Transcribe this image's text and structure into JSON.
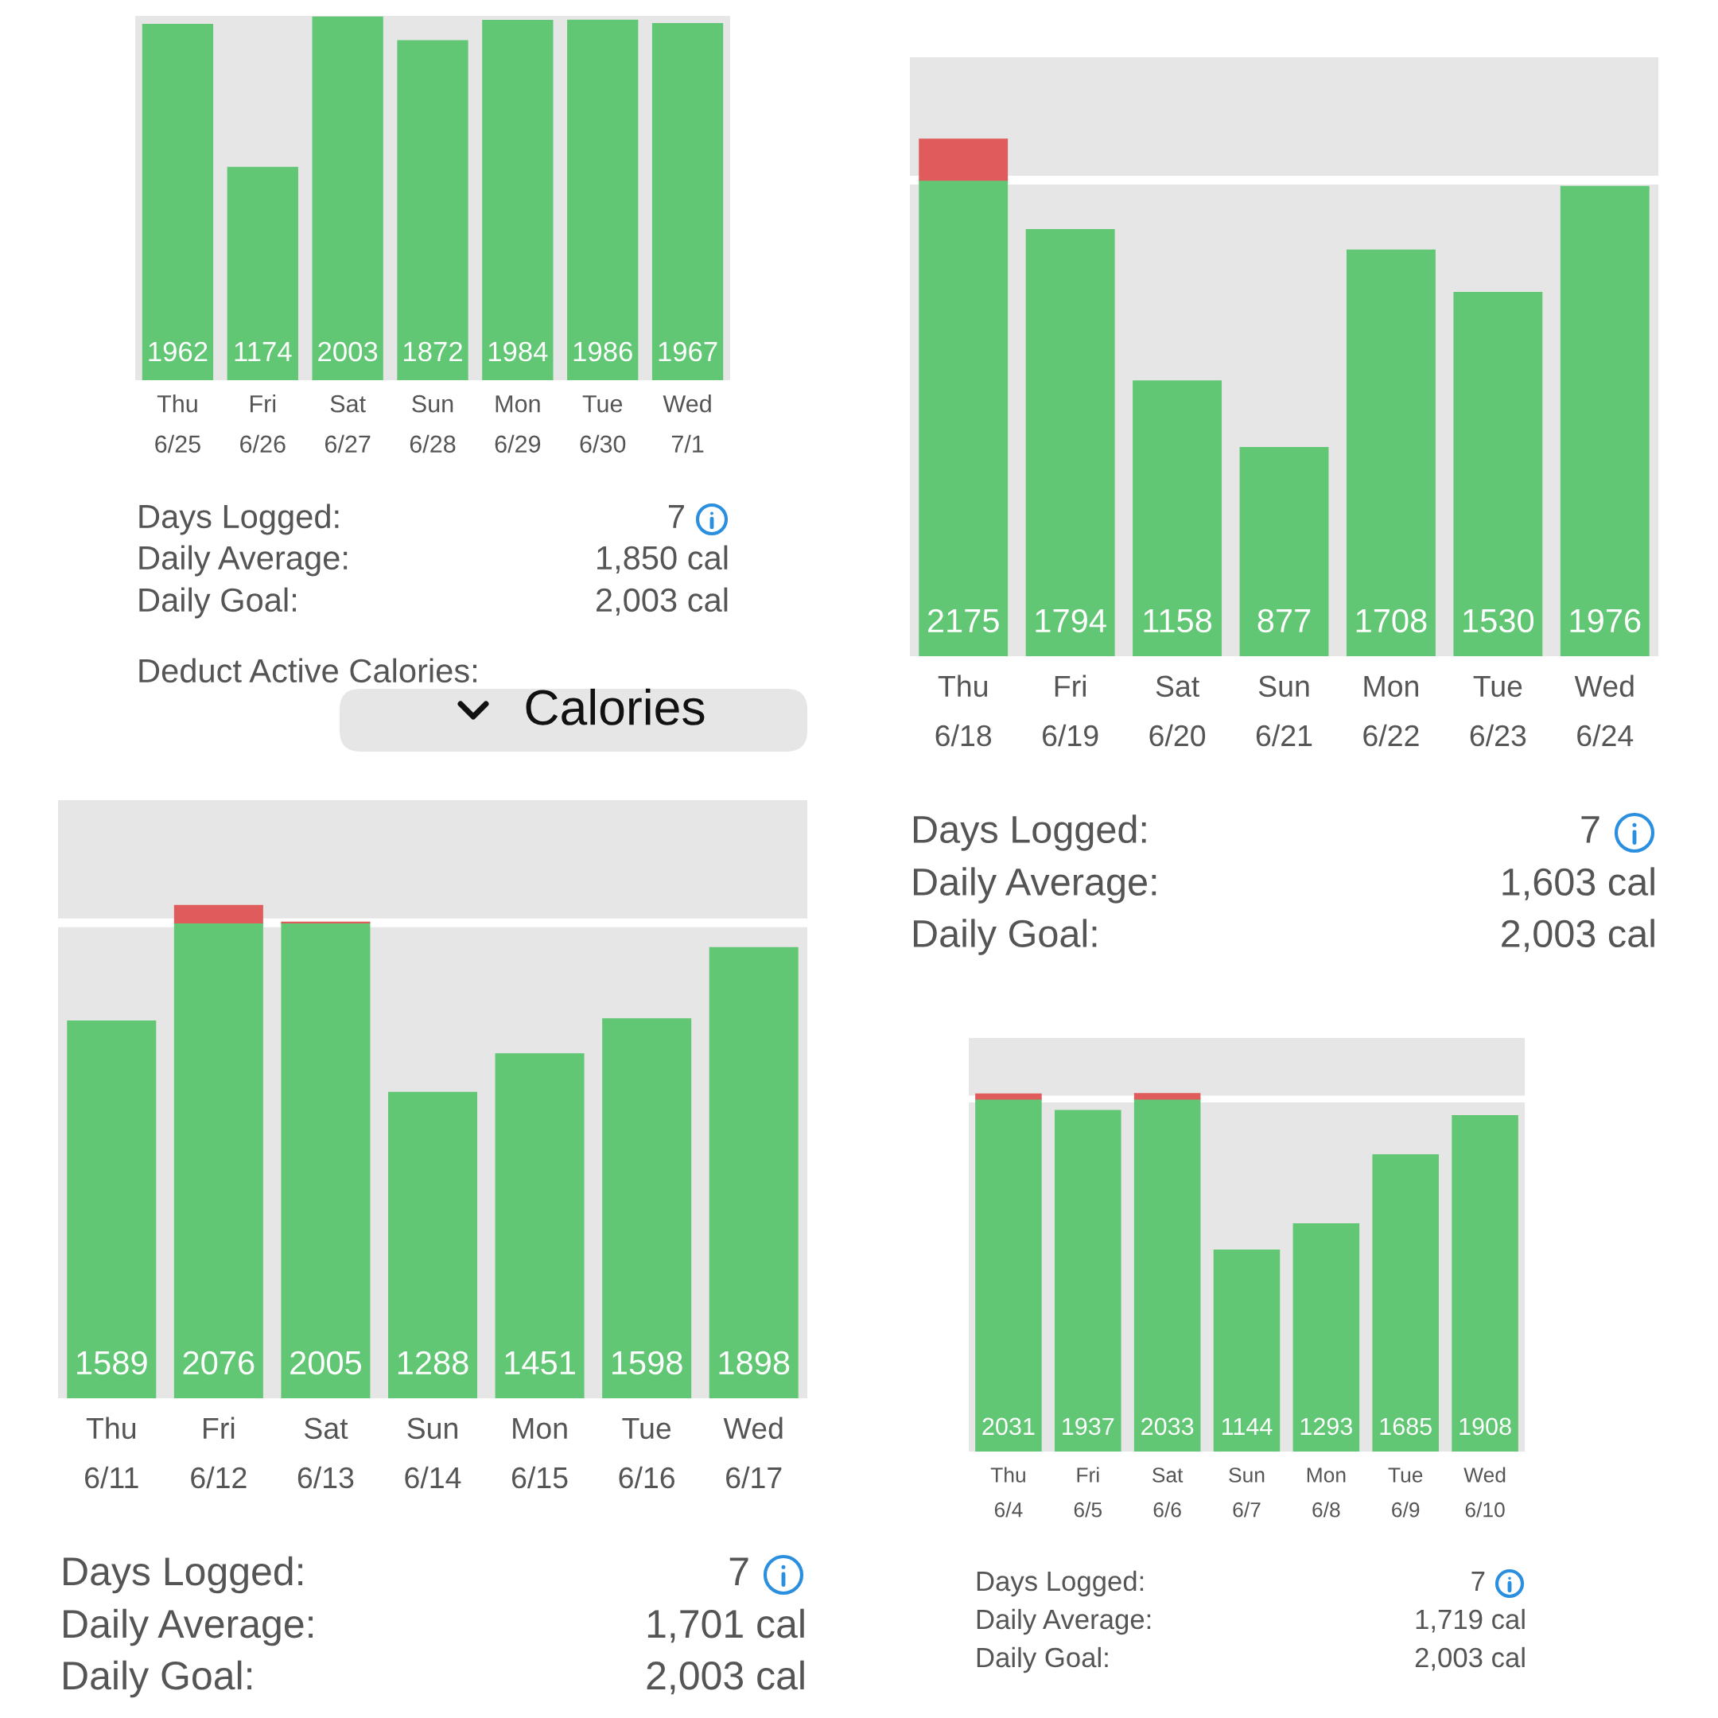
{
  "chart_data": [
    {
      "type": "bar",
      "categories": [
        "Thu\n6/25",
        "Fri\n6/26",
        "Sat\n6/27",
        "Sun\n6/28",
        "Mon\n6/29",
        "Tue\n6/30",
        "Wed\n7/1"
      ],
      "series": [
        {
          "color": "#62c774",
          "values": [
            1962,
            1174,
            2003,
            1872,
            1984,
            1986,
            1967
          ]
        }
      ],
      "data_labels": true,
      "ylim": [
        0,
        2010
      ],
      "tick_labels": "x",
      "bands": [
        {
          "axis": "y",
          "from": 0,
          "to": 2010,
          "color": "#e6e6e6"
        }
      ],
      "annotations": [
        "Days Logged:",
        "7",
        "Daily Average:",
        "1,850 cal",
        "Daily Goal:",
        "2,003 cal",
        "Deduct Active Calories:"
      ]
    },
    {
      "type": "bar",
      "categories": [
        "Thu\n6/18",
        "Fri\n6/19",
        "Sat\n6/20",
        "Sun\n6/21",
        "Mon\n6/22",
        "Tue\n6/23",
        "Wed\n6/24"
      ],
      "series": [
        {
          "color": "#62c774",
          "values": [
            2003,
            1794,
            1158,
            877,
            1708,
            1530,
            1976
          ],
          "value_labels": [
            null,
            "1794",
            "1158",
            "877",
            "1708",
            "1530",
            "1976"
          ]
        },
        {
          "color": "#e05c5c",
          "values": [
            172,
            null,
            null,
            null,
            null,
            null,
            null
          ]
        }
      ],
      "stacked": true,
      "totals": [
        "2175",
        null,
        null,
        null,
        null,
        null,
        null
      ],
      "ylim": [
        0,
        2520
      ],
      "tick_labels": "x",
      "bands": [
        {
          "axis": "y",
          "from": 0,
          "to": 2520,
          "color": "#e6e6e6"
        }
      ],
      "ref_lines": [
        {
          "axis": "y",
          "value": 2003,
          "color": "#ffffff"
        }
      ],
      "annotations": [
        "Days Logged:",
        "7",
        "Daily Average:",
        "1,603 cal",
        "Daily Goal:",
        "2,003 cal"
      ]
    },
    {
      "type": "bar",
      "title": "Calories",
      "categories": [
        "Thu\n6/11",
        "Fri\n6/12",
        "Sat\n6/13",
        "Sun\n6/14",
        "Mon\n6/15",
        "Tue\n6/16",
        "Wed\n6/17"
      ],
      "series": [
        {
          "color": "#62c774",
          "values": [
            1589,
            2003,
            2003,
            1288,
            1451,
            1598,
            1898
          ],
          "value_labels": [
            "1589",
            null,
            null,
            "1288",
            "1451",
            "1598",
            "1898"
          ]
        },
        {
          "color": "#e05c5c",
          "values": [
            null,
            73,
            2,
            null,
            null,
            null,
            null
          ]
        }
      ],
      "stacked": true,
      "totals": [
        null,
        "2076",
        "2005",
        null,
        null,
        null,
        null
      ],
      "ylim": [
        0,
        2520
      ],
      "tick_labels": "x",
      "bands": [
        {
          "axis": "y",
          "from": 0,
          "to": 2520,
          "color": "#e6e6e6"
        }
      ],
      "ref_lines": [
        {
          "axis": "y",
          "value": 2003,
          "color": "#ffffff"
        }
      ],
      "annotations": [
        "Days Logged:",
        "7",
        "Daily Average:",
        "1,701 cal",
        "Daily Goal:",
        "2,003 cal"
      ]
    },
    {
      "type": "bar",
      "categories": [
        "Thu\n6/4",
        "Fri\n6/5",
        "Sat\n6/6",
        "Sun\n6/7",
        "Mon\n6/8",
        "Tue\n6/9",
        "Wed\n6/10"
      ],
      "series": [
        {
          "color": "#62c774",
          "values": [
            2003,
            1937,
            2003,
            1144,
            1293,
            1685,
            1908
          ],
          "value_labels": [
            null,
            "1937",
            null,
            "1144",
            "1293",
            "1685",
            "1908"
          ]
        },
        {
          "color": "#e05c5c",
          "values": [
            28,
            null,
            30,
            null,
            null,
            null,
            null
          ]
        }
      ],
      "stacked": true,
      "totals": [
        "2031",
        null,
        "2033",
        null,
        null,
        null,
        null
      ],
      "ylim": [
        0,
        2350
      ],
      "tick_labels": "x",
      "bands": [
        {
          "axis": "y",
          "from": 0,
          "to": 2350,
          "color": "#e6e6e6"
        }
      ],
      "ref_lines": [
        {
          "axis": "y",
          "value": 2003,
          "color": "#ffffff"
        }
      ],
      "annotations": [
        "Days Logged:",
        "7",
        "Daily Average:",
        "1,719 cal",
        "Daily Goal:",
        "2,003 cal"
      ]
    }
  ]
}
